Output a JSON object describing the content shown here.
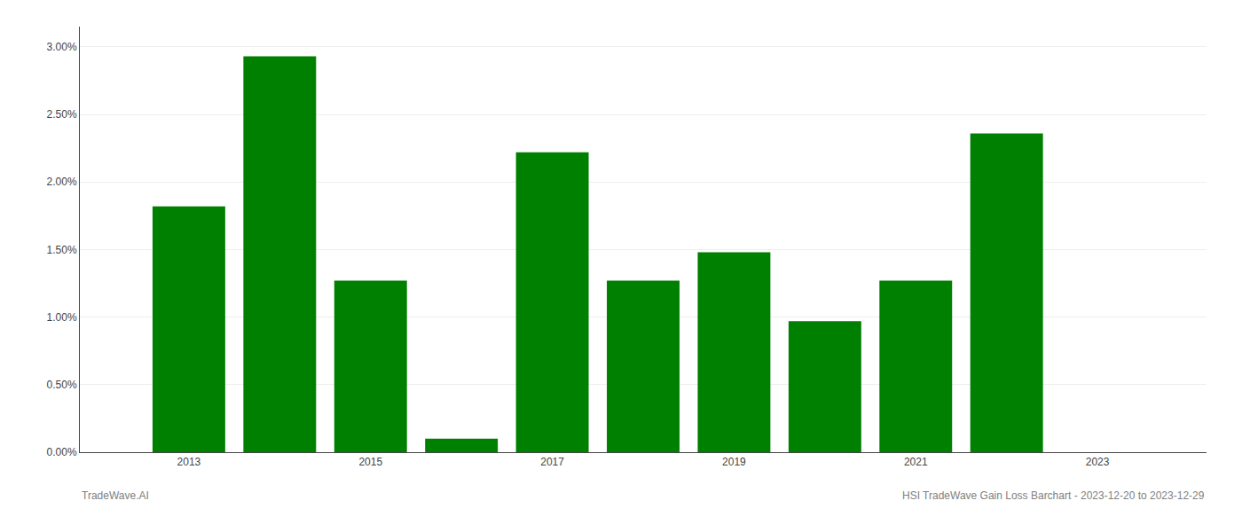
{
  "chart_data": {
    "type": "bar",
    "x": [
      2013,
      2014,
      2015,
      2016,
      2017,
      2018,
      2019,
      2020,
      2021,
      2022
    ],
    "values": [
      0.0182,
      0.0293,
      0.0127,
      0.001,
      0.0222,
      0.0127,
      0.0148,
      0.0097,
      0.0127,
      0.0236
    ],
    "color": "#008000",
    "xlim": [
      2011.8,
      2024.2
    ],
    "xticks": [
      2013,
      2015,
      2017,
      2019,
      2021,
      2023
    ],
    "ylim": [
      0,
      0.0315
    ],
    "yticks": [
      {
        "value": 0,
        "label": "0.00%"
      },
      {
        "value": 0.005,
        "label": "0.50%"
      },
      {
        "value": 0.01,
        "label": "1.00%"
      },
      {
        "value": 0.015,
        "label": "1.50%"
      },
      {
        "value": 0.02,
        "label": "2.00%"
      },
      {
        "value": 0.025,
        "label": "2.50%"
      },
      {
        "value": 0.03,
        "label": "3.00%"
      }
    ],
    "grid": true,
    "annotations": [
      "TradeWave.AI",
      "HSI TradeWave Gain Loss Barchart - 2023-12-20 to 2023-12-29"
    ]
  }
}
